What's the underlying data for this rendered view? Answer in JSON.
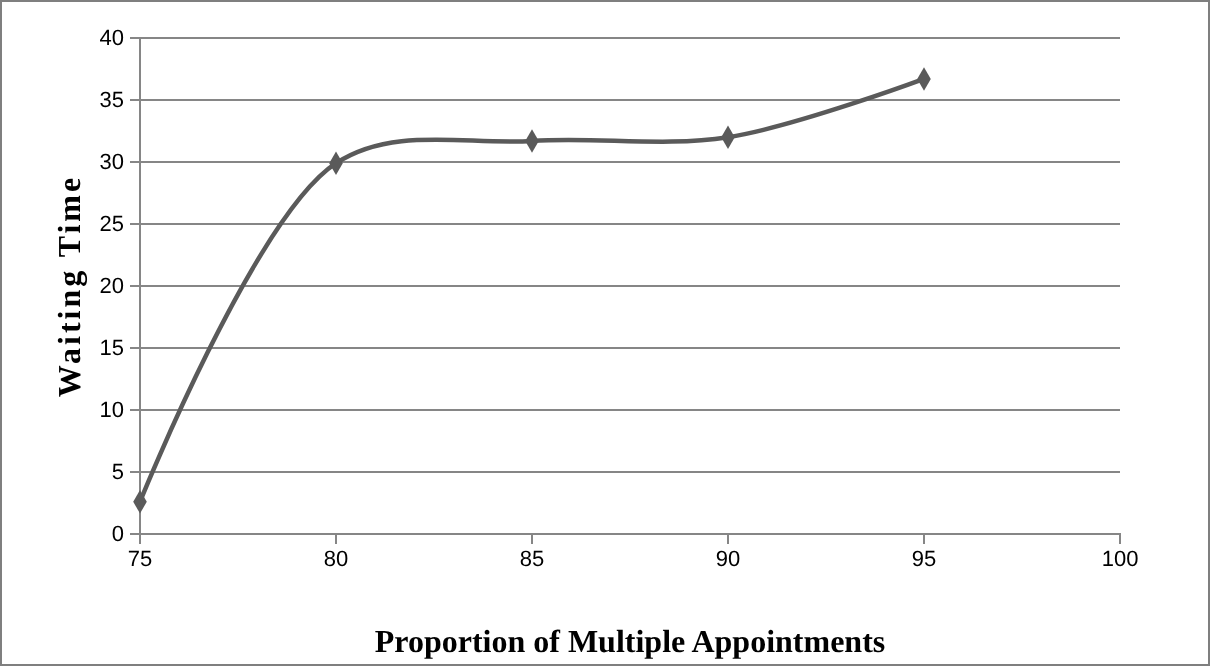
{
  "chart_data": {
    "type": "line",
    "xlabel": "Proportion of Multiple Appointments",
    "ylabel": "Waiting Time",
    "x": [
      75,
      80,
      85,
      90,
      95
    ],
    "series": [
      {
        "color": "#5a5a5a",
        "values": [
          2.6,
          29.9,
          31.7,
          32.0,
          36.7
        ]
      }
    ],
    "xlim": [
      75,
      100
    ],
    "xticks": [
      75,
      80,
      85,
      90,
      95,
      100
    ],
    "ylim": [
      0,
      40
    ],
    "yticks": [
      0,
      5,
      10,
      15,
      20,
      25,
      30,
      35,
      40
    ],
    "grid": "y",
    "marker": "diamond",
    "line_style": "solid"
  }
}
